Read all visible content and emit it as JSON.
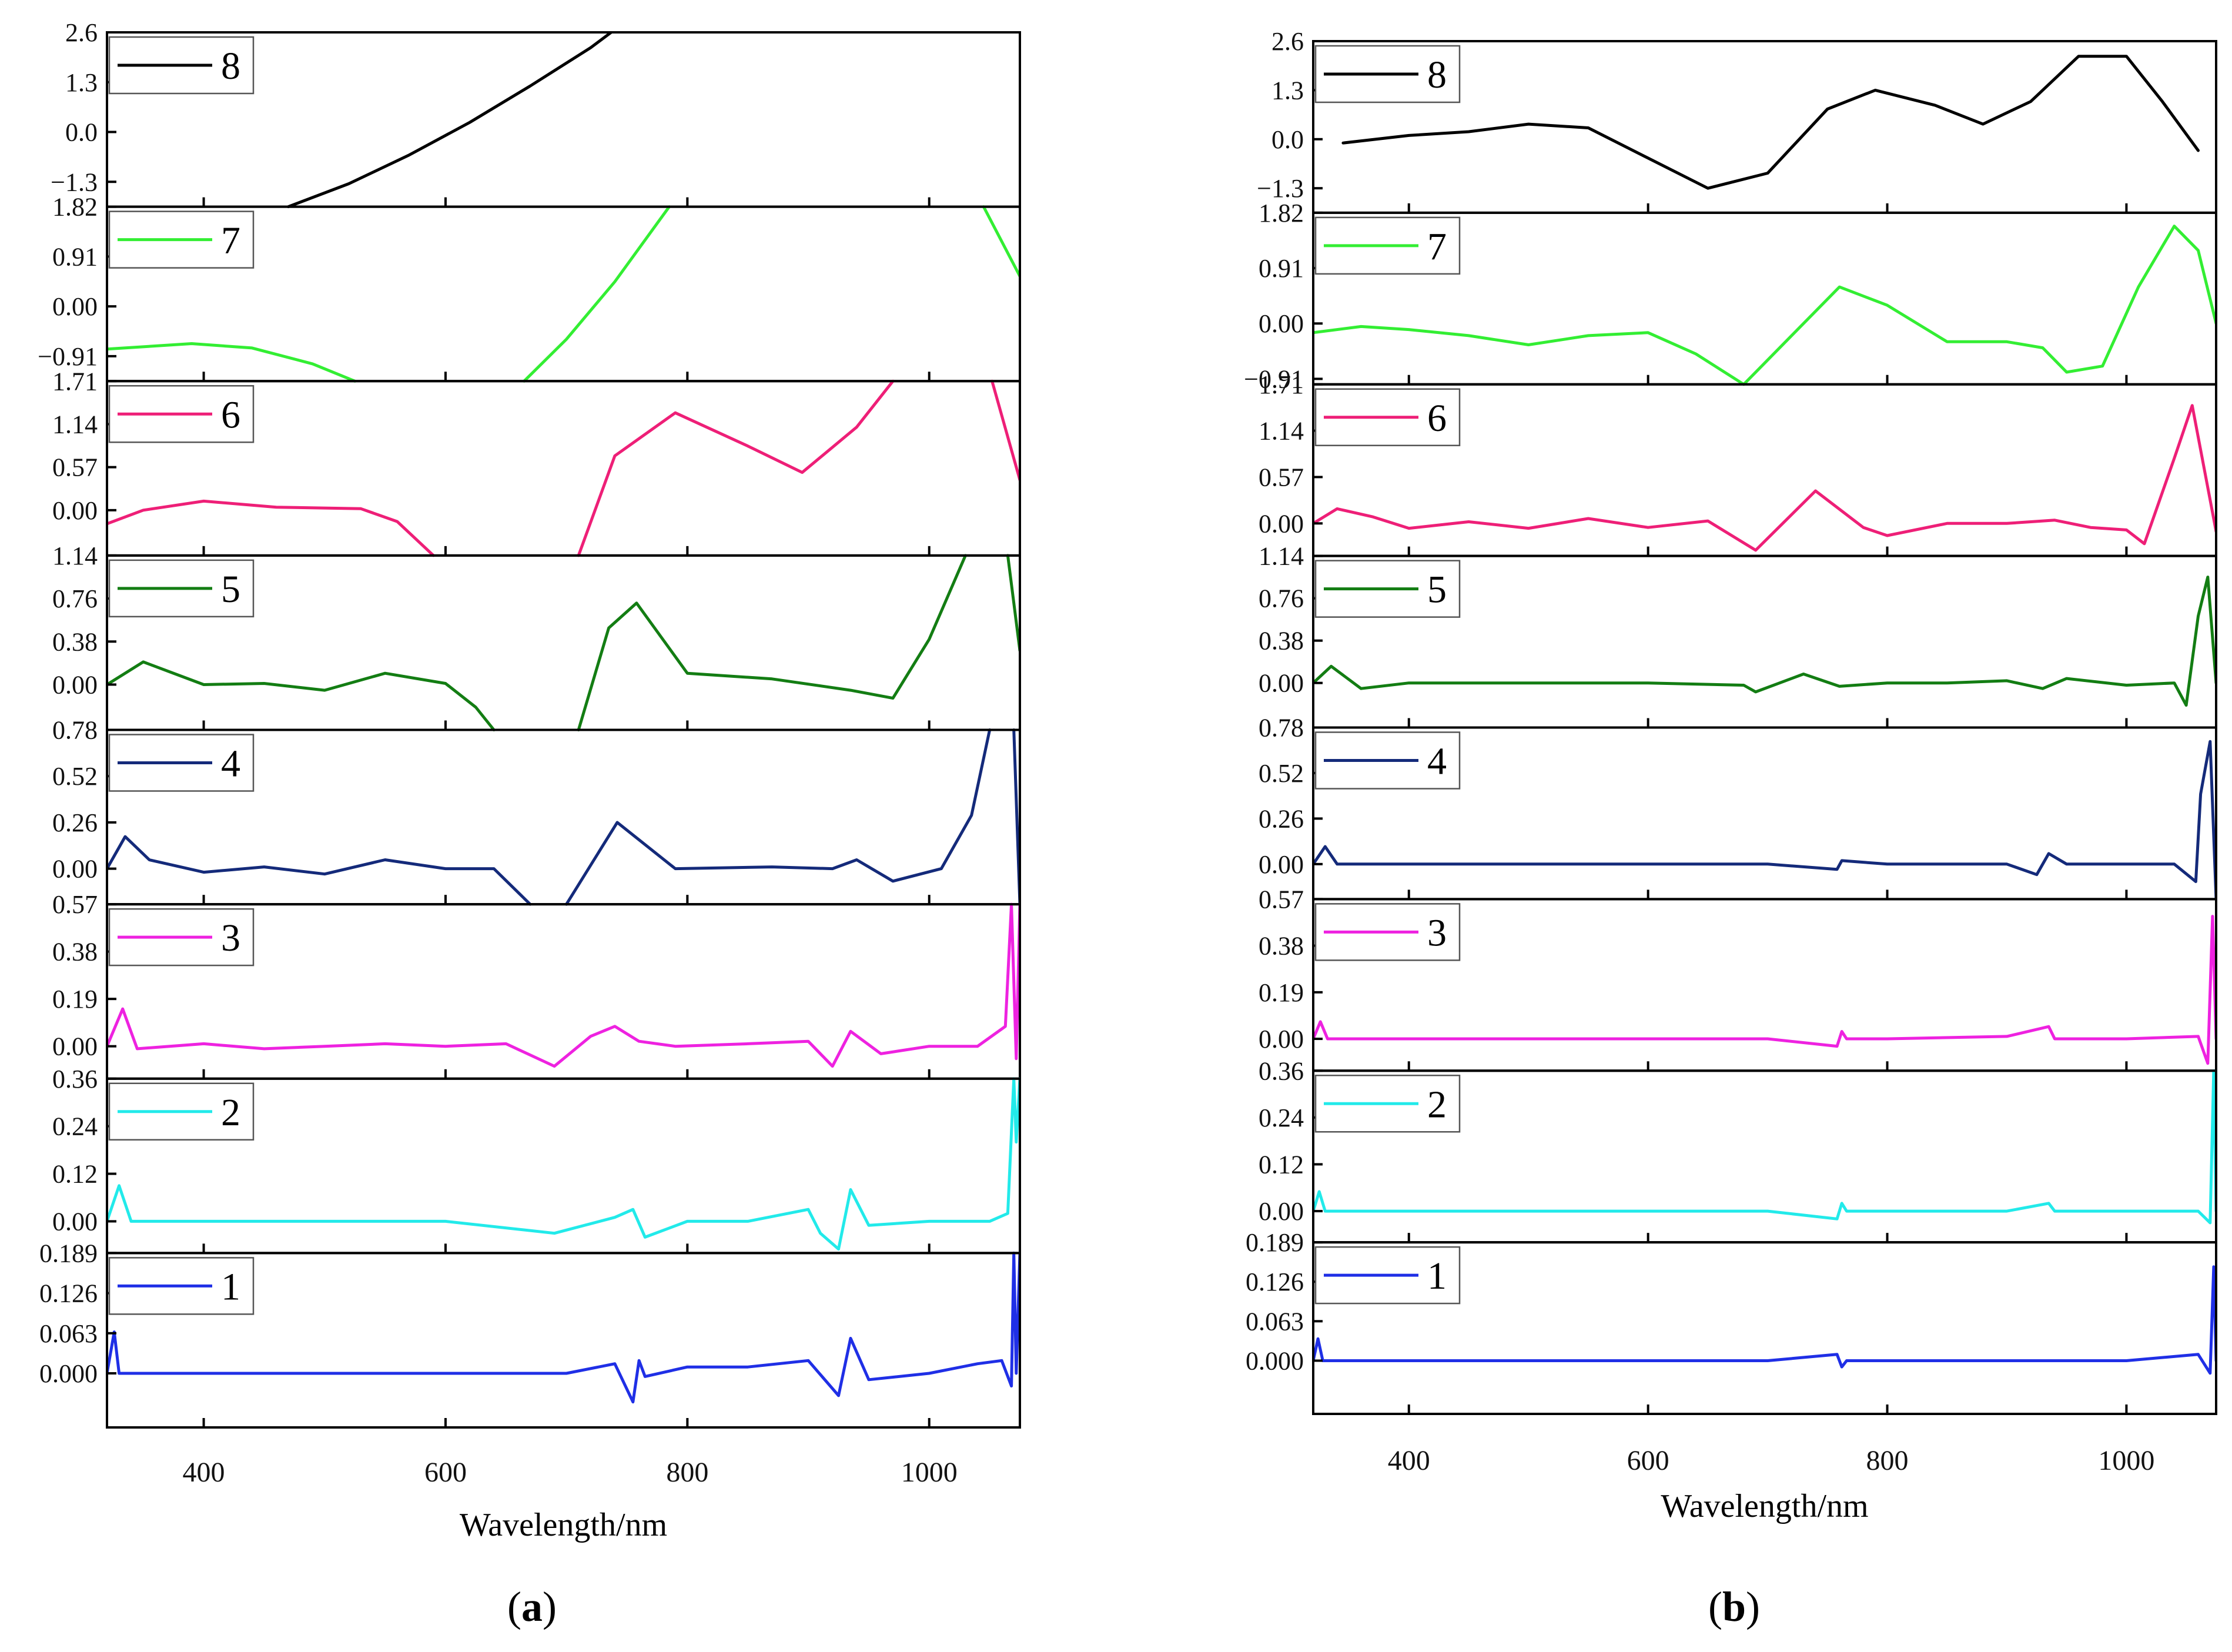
{
  "chart_data": [
    {
      "type": "line",
      "panel_label": "(a)",
      "panel_letter": "a",
      "xlabel": "Wavelength/nm",
      "xlim": [
        320,
        1075
      ],
      "xticks": [
        400,
        600,
        800,
        1000
      ],
      "xtick_labels": [
        "400",
        "600",
        "800",
        "1000"
      ],
      "subplots": [
        {
          "legend": "8",
          "color": "#000000",
          "ylim": [
            -1.95,
            2.6
          ],
          "yticks": [
            2.6,
            1.3,
            0.0,
            -1.3
          ],
          "ytick_labels": [
            "2.6",
            "1.3",
            "0.0",
            "−1.3"
          ],
          "x": [
            470,
            520,
            570,
            620,
            670,
            720,
            737
          ],
          "y": [
            -1.95,
            -1.35,
            -0.6,
            0.25,
            1.2,
            2.2,
            2.6
          ]
        },
        {
          "legend": "7",
          "color": "#33ee33",
          "ylim": [
            -1.365,
            1.82
          ],
          "yticks": [
            1.82,
            0.91,
            0.0,
            -0.91
          ],
          "ytick_labels": [
            "1.82",
            "0.91",
            "0.00",
            "−0.91"
          ],
          "x": [
            320,
            390,
            440,
            490,
            525,
            null,
            665,
            700,
            740,
            785,
            null,
            1045,
            1075
          ],
          "y": [
            -0.78,
            -0.68,
            -0.76,
            -1.05,
            -1.365,
            null,
            -1.365,
            -0.6,
            0.45,
            1.82,
            null,
            1.82,
            0.55
          ]
        },
        {
          "legend": "6",
          "color": "#ee1f77",
          "ylim": [
            -0.6,
            1.71
          ],
          "yticks": [
            1.71,
            1.14,
            0.57,
            0.0
          ],
          "ytick_labels": [
            "1.71",
            "1.14",
            "0.57",
            "0.00"
          ],
          "x": [
            320,
            350,
            400,
            460,
            530,
            560,
            590,
            null,
            710,
            740,
            790,
            850,
            895,
            940,
            970,
            null,
            1052,
            1075
          ],
          "y": [
            -0.18,
            0.0,
            0.12,
            0.04,
            0.02,
            -0.15,
            -0.6,
            null,
            -0.6,
            0.72,
            1.29,
            0.85,
            0.5,
            1.1,
            1.71,
            null,
            1.71,
            0.4
          ]
        },
        {
          "legend": "5",
          "color": "#137d13",
          "ylim": [
            -0.4,
            1.14
          ],
          "yticks": [
            1.14,
            0.76,
            0.38,
            0.0
          ],
          "ytick_labels": [
            "1.14",
            "0.76",
            "0.38",
            "0.00"
          ],
          "x": [
            320,
            350,
            400,
            450,
            500,
            550,
            600,
            625,
            640,
            null,
            710,
            735,
            758,
            800,
            870,
            935,
            970,
            1000,
            1030,
            null,
            1065,
            1075
          ],
          "y": [
            0.0,
            0.2,
            0.0,
            0.01,
            -0.05,
            0.1,
            0.01,
            -0.2,
            -0.4,
            null,
            -0.4,
            0.5,
            0.72,
            0.1,
            0.05,
            -0.05,
            -0.12,
            0.4,
            1.14,
            null,
            1.14,
            0.3
          ]
        },
        {
          "legend": "4",
          "color": "#142a7a",
          "ylim": [
            -0.2,
            0.78
          ],
          "yticks": [
            0.78,
            0.52,
            0.26,
            0.0
          ],
          "ytick_labels": [
            "0.78",
            "0.52",
            "0.26",
            "0.00"
          ],
          "x": [
            320,
            335,
            355,
            400,
            450,
            500,
            550,
            600,
            640,
            670,
            null,
            700,
            742,
            790,
            870,
            920,
            940,
            970,
            1010,
            1035,
            1050,
            null,
            1070,
            1075
          ],
          "y": [
            0.0,
            0.18,
            0.05,
            -0.02,
            0.01,
            -0.03,
            0.05,
            0.0,
            0.0,
            -0.2,
            null,
            -0.2,
            0.26,
            0.0,
            0.01,
            0.0,
            0.05,
            -0.07,
            0.0,
            0.3,
            0.78,
            null,
            0.78,
            -0.2
          ]
        },
        {
          "legend": "3",
          "color": "#ee22e0",
          "ylim": [
            -0.13,
            0.57
          ],
          "yticks": [
            0.57,
            0.38,
            0.19,
            0.0
          ],
          "ytick_labels": [
            "0.57",
            "0.38",
            "0.19",
            "0.00"
          ],
          "x": [
            320,
            333,
            345,
            400,
            450,
            500,
            550,
            600,
            650,
            690,
            720,
            740,
            760,
            790,
            850,
            900,
            920,
            935,
            960,
            1000,
            1040,
            1063,
            1068,
            1072,
            1075
          ],
          "y": [
            0.0,
            0.15,
            -0.01,
            0.01,
            -0.01,
            0.0,
            0.01,
            0.0,
            0.01,
            -0.08,
            0.04,
            0.08,
            0.02,
            0.0,
            0.01,
            0.02,
            -0.08,
            0.06,
            -0.03,
            0.0,
            0.0,
            0.08,
            0.57,
            -0.05,
            0.57
          ]
        },
        {
          "legend": "2",
          "color": "#22eaea",
          "ylim": [
            -0.08,
            0.36
          ],
          "yticks": [
            0.36,
            0.24,
            0.12,
            0.0
          ],
          "ytick_labels": [
            "0.36",
            "0.24",
            "0.12",
            "0.00"
          ],
          "x": [
            320,
            330,
            340,
            400,
            500,
            600,
            690,
            740,
            755,
            765,
            800,
            850,
            900,
            910,
            925,
            935,
            950,
            1000,
            1050,
            1065,
            1070,
            1072,
            1075
          ],
          "y": [
            0.0,
            0.09,
            0.0,
            0.0,
            0.0,
            0.0,
            -0.03,
            0.01,
            0.03,
            -0.04,
            0.0,
            0.0,
            0.03,
            -0.03,
            -0.07,
            0.08,
            -0.01,
            0.0,
            0.0,
            0.02,
            0.36,
            0.2,
            0.36
          ]
        },
        {
          "legend": "1",
          "color": "#1f2fe6",
          "ylim": [
            -0.085,
            0.189
          ],
          "yticks": [
            0.189,
            0.126,
            0.063,
            0.0
          ],
          "ytick_labels": [
            "0.189",
            "0.126",
            "0.063",
            "0.000"
          ],
          "x": [
            320,
            326,
            330,
            400,
            500,
            600,
            700,
            740,
            755,
            760,
            765,
            800,
            850,
            900,
            925,
            935,
            950,
            1000,
            1040,
            1060,
            1068,
            1070,
            1072,
            1075
          ],
          "y": [
            0.0,
            0.065,
            0.0,
            0.0,
            0.0,
            0.0,
            0.0,
            0.015,
            -0.045,
            0.02,
            -0.005,
            0.01,
            0.01,
            0.02,
            -0.035,
            0.055,
            -0.01,
            0.0,
            0.015,
            0.02,
            -0.02,
            0.189,
            0.0,
            0.189
          ]
        }
      ]
    },
    {
      "type": "line",
      "panel_label": "(b)",
      "panel_letter": "b",
      "xlabel": "Wavelength/nm",
      "xlim": [
        320,
        1075
      ],
      "xticks": [
        400,
        600,
        800,
        1000
      ],
      "xtick_labels": [
        "400",
        "600",
        "800",
        "1000"
      ],
      "subplots": [
        {
          "legend": "8",
          "color": "#000000",
          "ylim": [
            -1.95,
            2.6
          ],
          "yticks": [
            2.6,
            1.3,
            0.0,
            -1.3
          ],
          "ytick_labels": [
            "2.6",
            "1.3",
            "0.0",
            "−1.3"
          ],
          "x": [
            345,
            400,
            450,
            500,
            550,
            600,
            650,
            700,
            750,
            790,
            840,
            880,
            920,
            960,
            1000,
            1030,
            1060
          ],
          "y": [
            -0.1,
            0.1,
            0.2,
            0.4,
            0.3,
            -0.5,
            -1.3,
            -0.9,
            0.8,
            1.3,
            0.9,
            0.4,
            1.0,
            2.2,
            2.2,
            1.0,
            -0.3
          ]
        },
        {
          "legend": "7",
          "color": "#33ee33",
          "ylim": [
            -1.0,
            1.82
          ],
          "yticks": [
            1.82,
            0.91,
            0.0,
            -0.91
          ],
          "ytick_labels": [
            "1.82",
            "0.91",
            "0.00",
            "−0.91"
          ],
          "x": [
            320,
            360,
            400,
            450,
            500,
            550,
            600,
            640,
            680,
            720,
            760,
            800,
            850,
            900,
            930,
            950,
            980,
            1010,
            1040,
            1060,
            1075
          ],
          "y": [
            -0.15,
            -0.05,
            -0.1,
            -0.2,
            -0.35,
            -0.2,
            -0.15,
            -0.5,
            -1.0,
            -0.2,
            0.6,
            0.3,
            -0.3,
            -0.3,
            -0.4,
            -0.8,
            -0.7,
            0.6,
            1.6,
            1.2,
            0.0
          ]
        },
        {
          "legend": "6",
          "color": "#ee1f77",
          "ylim": [
            -0.4,
            1.71
          ],
          "yticks": [
            1.71,
            1.14,
            0.57,
            0.0
          ],
          "ytick_labels": [
            "1.71",
            "1.14",
            "0.57",
            "0.00"
          ],
          "x": [
            320,
            340,
            370,
            400,
            450,
            500,
            550,
            600,
            650,
            690,
            740,
            780,
            800,
            850,
            900,
            940,
            970,
            1000,
            1015,
            1040,
            1055,
            1075
          ],
          "y": [
            0.0,
            0.18,
            0.08,
            -0.06,
            0.02,
            -0.06,
            0.06,
            -0.05,
            0.03,
            -0.33,
            0.4,
            -0.05,
            -0.15,
            0.0,
            0.0,
            0.04,
            -0.05,
            -0.08,
            -0.25,
            0.8,
            1.45,
            -0.1
          ]
        },
        {
          "legend": "5",
          "color": "#137d13",
          "ylim": [
            -0.4,
            1.14
          ],
          "yticks": [
            1.14,
            0.76,
            0.38,
            0.0
          ],
          "ytick_labels": [
            "1.14",
            "0.76",
            "0.38",
            "0.00"
          ],
          "x": [
            320,
            335,
            360,
            400,
            500,
            600,
            680,
            690,
            730,
            760,
            800,
            850,
            900,
            930,
            950,
            1000,
            1040,
            1050,
            1060,
            1068,
            1075
          ],
          "y": [
            0.0,
            0.15,
            -0.05,
            0.0,
            0.0,
            0.0,
            -0.02,
            -0.08,
            0.08,
            -0.03,
            0.0,
            0.0,
            0.02,
            -0.05,
            0.04,
            -0.02,
            0.0,
            -0.2,
            0.6,
            0.95,
            0.0
          ]
        },
        {
          "legend": "4",
          "color": "#142a7a",
          "ylim": [
            -0.2,
            0.78
          ],
          "yticks": [
            0.78,
            0.52,
            0.26,
            0.0
          ],
          "ytick_labels": [
            "0.78",
            "0.52",
            "0.26",
            "0.00"
          ],
          "x": [
            320,
            330,
            340,
            400,
            500,
            600,
            700,
            758,
            762,
            800,
            900,
            925,
            935,
            950,
            1000,
            1040,
            1058,
            1062,
            1070,
            1075
          ],
          "y": [
            0.0,
            0.1,
            0.0,
            0.0,
            0.0,
            0.0,
            0.0,
            -0.03,
            0.02,
            0.0,
            0.0,
            -0.06,
            0.06,
            0.0,
            0.0,
            0.0,
            -0.1,
            0.4,
            0.7,
            -0.2
          ]
        },
        {
          "legend": "3",
          "color": "#ee22e0",
          "ylim": [
            -0.13,
            0.57
          ],
          "yticks": [
            0.57,
            0.38,
            0.19,
            0.0
          ],
          "ytick_labels": [
            "0.57",
            "0.38",
            "0.19",
            "0.00"
          ],
          "x": [
            320,
            326,
            332,
            400,
            500,
            600,
            700,
            758,
            762,
            766,
            800,
            900,
            935,
            940,
            1000,
            1060,
            1068,
            1072,
            1075
          ],
          "y": [
            0.0,
            0.07,
            0.0,
            0.0,
            0.0,
            0.0,
            0.0,
            -0.03,
            0.03,
            0.0,
            0.0,
            0.01,
            0.05,
            0.0,
            0.0,
            0.01,
            -0.1,
            0.5,
            0.0
          ]
        },
        {
          "legend": "2",
          "color": "#22eaea",
          "ylim": [
            -0.08,
            0.36
          ],
          "yticks": [
            0.36,
            0.24,
            0.12,
            0.0
          ],
          "ytick_labels": [
            "0.36",
            "0.24",
            "0.12",
            "0.00"
          ],
          "x": [
            320,
            325,
            330,
            400,
            500,
            600,
            700,
            758,
            762,
            766,
            800,
            900,
            935,
            940,
            1000,
            1060,
            1070,
            1073,
            1075
          ],
          "y": [
            0.0,
            0.05,
            0.0,
            0.0,
            0.0,
            0.0,
            0.0,
            -0.02,
            0.02,
            0.0,
            0.0,
            0.0,
            0.02,
            0.0,
            0.0,
            0.0,
            -0.03,
            0.36,
            0.0
          ]
        },
        {
          "legend": "1",
          "color": "#1f2fe6",
          "ylim": [
            -0.085,
            0.189
          ],
          "yticks": [
            0.189,
            0.126,
            0.063,
            0.0
          ],
          "ytick_labels": [
            "0.189",
            "0.126",
            "0.063",
            "0.000"
          ],
          "x": [
            320,
            324,
            328,
            400,
            500,
            600,
            700,
            758,
            762,
            766,
            800,
            900,
            1000,
            1060,
            1070,
            1073,
            1075
          ],
          "y": [
            0.0,
            0.035,
            0.0,
            0.0,
            0.0,
            0.0,
            0.0,
            0.01,
            -0.01,
            0.0,
            0.0,
            0.0,
            0.0,
            0.01,
            -0.02,
            0.15,
            0.0
          ]
        }
      ]
    }
  ]
}
